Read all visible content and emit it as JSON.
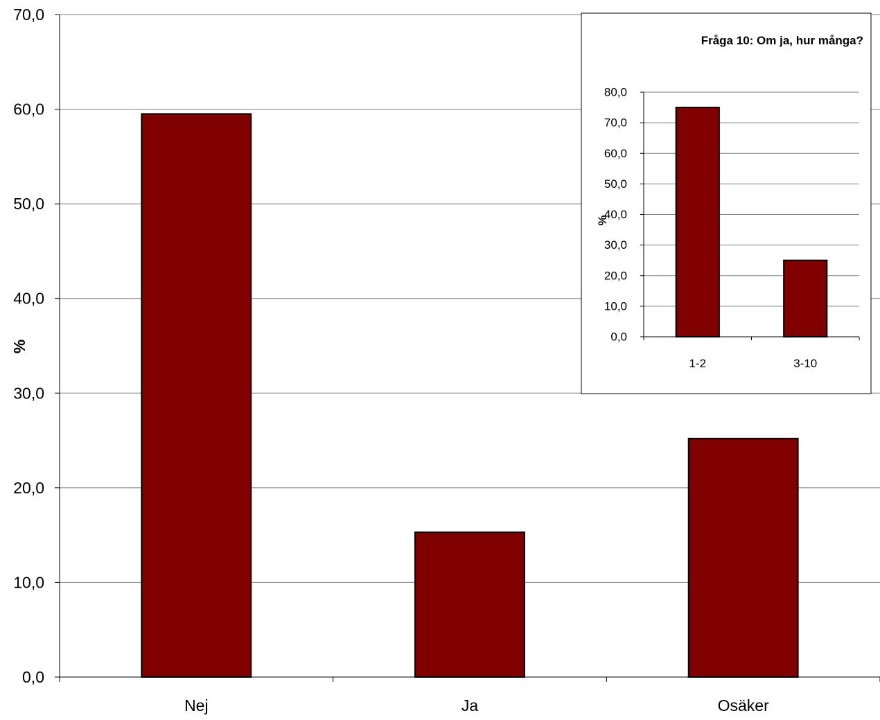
{
  "chart_data": [
    {
      "type": "bar",
      "title": "",
      "xlabel": "",
      "ylabel": "%",
      "categories": [
        "Nej",
        "Ja",
        "Osäker"
      ],
      "values": [
        59.5,
        15.3,
        25.2
      ],
      "ylim": [
        0,
        70
      ],
      "ytick_values": [
        0,
        10,
        20,
        30,
        40,
        50,
        60,
        70
      ],
      "ytick_labels": [
        "0,0",
        "10,0",
        "20,0",
        "30,0",
        "40,0",
        "50,0",
        "60,0",
        "70,0"
      ],
      "grid": true,
      "legend": "none",
      "bar_color": "#800000",
      "grid_color": "#808080"
    },
    {
      "type": "bar",
      "title": "Fråga 10: Om ja, hur många?",
      "xlabel": "",
      "ylabel": "%",
      "categories": [
        "1-2",
        "3-10"
      ],
      "values": [
        75.0,
        25.0
      ],
      "ylim": [
        0,
        80
      ],
      "ytick_values": [
        0,
        10,
        20,
        30,
        40,
        50,
        60,
        70,
        80
      ],
      "ytick_labels": [
        "0,0",
        "10,0",
        "20,0",
        "30,0",
        "40,0",
        "50,0",
        "60,0",
        "70,0",
        "80,0"
      ],
      "grid": true,
      "legend": "none",
      "bar_color": "#800000",
      "grid_color": "#808080"
    }
  ]
}
